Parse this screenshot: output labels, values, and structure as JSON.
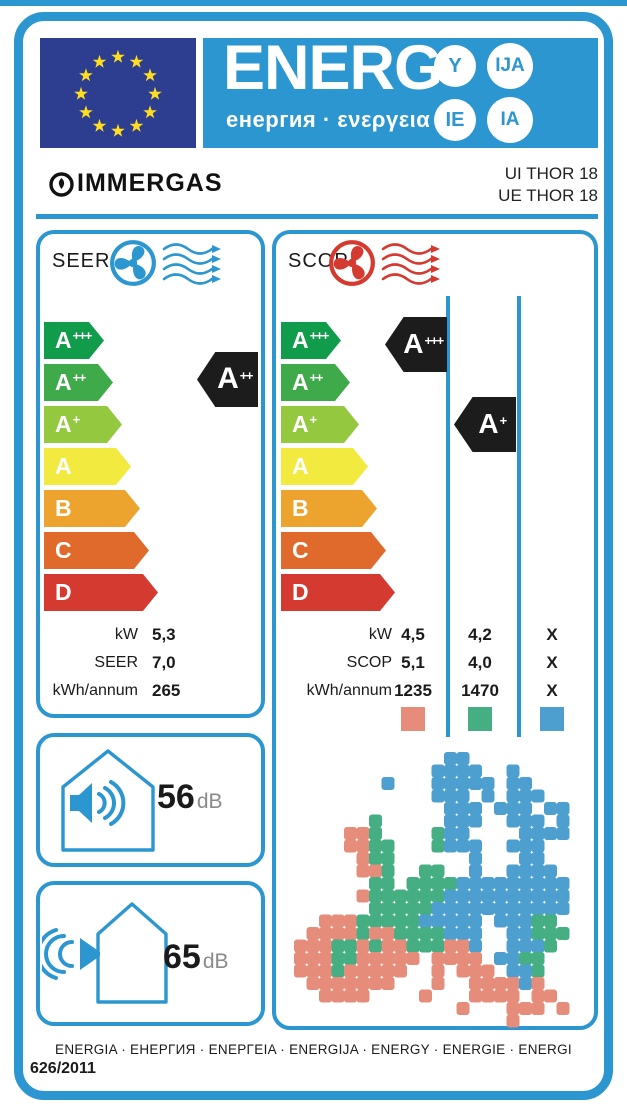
{
  "header": {
    "energ_word": "ENERG",
    "energ_subtitle": "енергия · ενεργεια",
    "endings": [
      "Y",
      "IJA",
      "IE",
      "IA"
    ],
    "colors": {
      "band_blue": "#2B96CF",
      "flag_navy": "#2D3D8F",
      "star_yellow": "#FFDE1F"
    }
  },
  "brand": {
    "name": "IMMERGAS",
    "models": [
      "UI THOR 18",
      "UE THOR 18"
    ]
  },
  "energy_classes": [
    {
      "label": "A+++",
      "color": "#119C4B"
    },
    {
      "label": "A++",
      "color": "#3FAA49"
    },
    {
      "label": "A+",
      "color": "#93C83F"
    },
    {
      "label": "A",
      "color": "#F2EA3E"
    },
    {
      "label": "B",
      "color": "#ECA42F"
    },
    {
      "label": "C",
      "color": "#E06A2B"
    },
    {
      "label": "D",
      "color": "#D43A2F"
    }
  ],
  "seer": {
    "title": "SEER",
    "indicator": "A++",
    "rows": [
      {
        "label": "kW",
        "value": "5,3"
      },
      {
        "label": "SEER",
        "value": "7,0"
      },
      {
        "label": "kWh/annum",
        "value": "265"
      }
    ]
  },
  "scop": {
    "title": "SCOP",
    "indicators": [
      "A+++",
      "A+"
    ],
    "row_labels": [
      "kW",
      "SCOP",
      "kWh/annum"
    ],
    "columns": [
      {
        "zone": "warmer",
        "values": [
          "4,5",
          "5,1",
          "1235"
        ],
        "color": "#E68C7B"
      },
      {
        "zone": "average",
        "values": [
          "4,2",
          "4,0",
          "1470"
        ],
        "color": "#46AE83"
      },
      {
        "zone": "colder",
        "values": [
          "X",
          "X",
          "X"
        ],
        "color": "#4C9FCE"
      }
    ]
  },
  "noise": [
    {
      "value": "56",
      "unit": "dB"
    },
    {
      "value": "65",
      "unit": "dB"
    }
  ],
  "map": {
    "colors": {
      "R": "#E68C7B",
      "G": "#46AE83",
      "B": "#4C9FCE"
    },
    "grid": [
      "............BB..........",
      "...........BBBB..B......",
      ".......B...BBBBB.BB.....",
      "...........BBB.B.BBB....",
      "............BBB.BBB.BB..",
      "......G.....BBB..BBB.B..",
      "....RRG....GBB....BBBB..",
      "....RRGG...GBBB..BBB....",
      ".....RGG......B...BB....",
      ".....RRG..GG..B..BBBB...",
      "......GG.GGGGBBBBBBBBB..",
      ".....RGGGGGGBBBBBBBBBB..",
      "......GGGGGBBBBBBBBBBB..",
      "..RRRGGGGGBBBBB.BBBGG...",
      ".RRRRGRRGGGGBBB..BBGGG..",
      "RRRGGRGRRGGGRRB..BBBG...",
      "RRRGGRRRRR.RRRR.BBGG....",
      "RRRGRRRRR..R.RRR.BBG....",
      ".RRRRRRR...R..RRRRBR....",
      "..RRRR....R...RRRR.RR...",
      ".............R...RRR.R..",
      ".................R......",
      "........................"
    ]
  },
  "footer": {
    "languages": "ENERGIA · ЕНЕРГИЯ · ΕΝΕΡΓΕΙΑ · ENERGIJA · ENERGY · ENERGIE · ENERGI",
    "regulation": "626/2011"
  }
}
